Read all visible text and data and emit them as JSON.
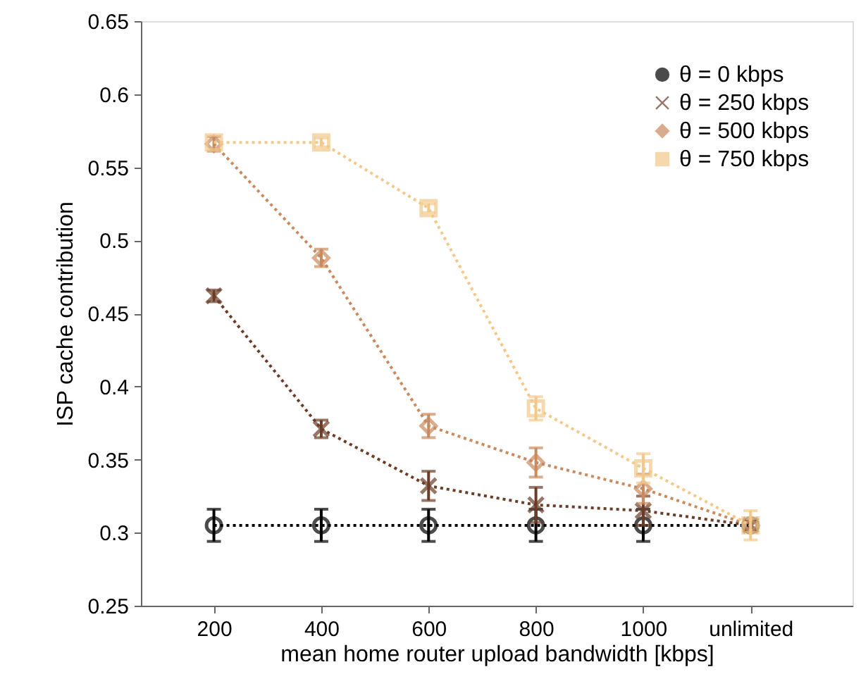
{
  "chart_data": {
    "type": "line",
    "xlabel": "mean home router upload bandwidth [kbps]",
    "ylabel": "ISP cache contribution",
    "x": [
      200,
      400,
      600,
      800,
      1000,
      1200
    ],
    "xlim": [
      64,
      1390
    ],
    "xticks": [
      200,
      400,
      600,
      800,
      1000,
      {
        "value": 1200,
        "label": "unlimited"
      }
    ],
    "ylim": [
      0.25,
      0.65
    ],
    "yticks": [
      0.25,
      0.3,
      0.35,
      0.4,
      0.45,
      0.5,
      0.55,
      0.6,
      0.65
    ],
    "grid": false,
    "legend": "top right",
    "line_style": "dotted",
    "series": [
      {
        "name": "θ = 0 kbps",
        "color": "#000000",
        "marker": "circle",
        "values": [
          0.305,
          0.305,
          0.305,
          0.305,
          0.305,
          0.305
        ],
        "errors": [
          0.011,
          0.011,
          0.011,
          0.011,
          0.011,
          null
        ]
      },
      {
        "name": "θ = 250 kbps",
        "color": "#6b3d28",
        "marker": "cross",
        "values": [
          0.462,
          0.371,
          0.332,
          0.319,
          0.315,
          0.305
        ],
        "errors": [
          0.004,
          0.006,
          0.01,
          0.012,
          0.01,
          null
        ]
      },
      {
        "name": "θ = 500 kbps",
        "color": "#c98a5e",
        "marker": "diamond",
        "values": [
          0.566,
          0.488,
          0.373,
          0.348,
          0.33,
          0.305
        ],
        "errors": [
          0.005,
          0.006,
          0.008,
          0.01,
          0.01,
          null
        ]
      },
      {
        "name": "θ = 750 kbps",
        "color": "#f2c98a",
        "marker": "square",
        "values": [
          0.567,
          0.567,
          0.522,
          0.385,
          0.344,
          0.305
        ],
        "errors": [
          null,
          0.003,
          0.003,
          0.008,
          0.01,
          0.01
        ]
      }
    ]
  }
}
